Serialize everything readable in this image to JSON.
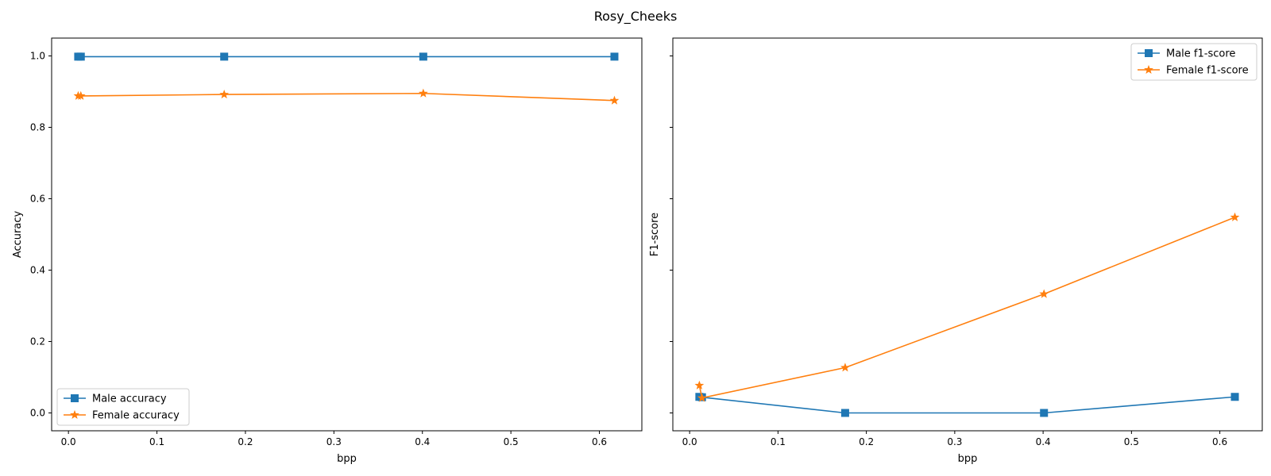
{
  "title": "Rosy_Cheeks",
  "colors": {
    "male": "#1f77b4",
    "female": "#ff7f0e"
  },
  "chart_data": [
    {
      "type": "line",
      "xlabel": "bpp",
      "ylabel": "Accuracy",
      "xlim": [
        -0.019,
        0.648
      ],
      "ylim": [
        -0.05,
        1.05
      ],
      "xticks": [
        "0.0",
        "0.1",
        "0.2",
        "0.3",
        "0.4",
        "0.5",
        "0.6"
      ],
      "yticks": [
        "0.0",
        "0.2",
        "0.4",
        "0.6",
        "0.8",
        "1.0"
      ],
      "legend_position": "lower-left",
      "grid": false,
      "series": [
        {
          "name": "Male accuracy",
          "marker": "square",
          "x": [
            0.011,
            0.014,
            0.176,
            0.401,
            0.617
          ],
          "y": [
            0.998,
            0.998,
            0.998,
            0.998,
            0.998
          ]
        },
        {
          "name": "Female accuracy",
          "marker": "star",
          "x": [
            0.011,
            0.014,
            0.176,
            0.401,
            0.617
          ],
          "y": [
            0.888,
            0.888,
            0.892,
            0.895,
            0.875
          ]
        }
      ]
    },
    {
      "type": "line",
      "xlabel": "bpp",
      "ylabel": "F1-score",
      "xlim": [
        -0.019,
        0.648
      ],
      "ylim": [
        -0.05,
        1.05
      ],
      "xticks": [
        "0.0",
        "0.1",
        "0.2",
        "0.3",
        "0.4",
        "0.5",
        "0.6"
      ],
      "yticks": [],
      "legend_position": "upper-right",
      "grid": false,
      "series": [
        {
          "name": "Male f1-score",
          "marker": "square",
          "x": [
            0.011,
            0.014,
            0.176,
            0.401,
            0.617
          ],
          "y": [
            0.045,
            0.044,
            0.0,
            0.0,
            0.045
          ]
        },
        {
          "name": "Female f1-score",
          "marker": "star",
          "x": [
            0.011,
            0.014,
            0.176,
            0.401,
            0.617
          ],
          "y": [
            0.077,
            0.042,
            0.127,
            0.333,
            0.548
          ]
        }
      ]
    }
  ]
}
